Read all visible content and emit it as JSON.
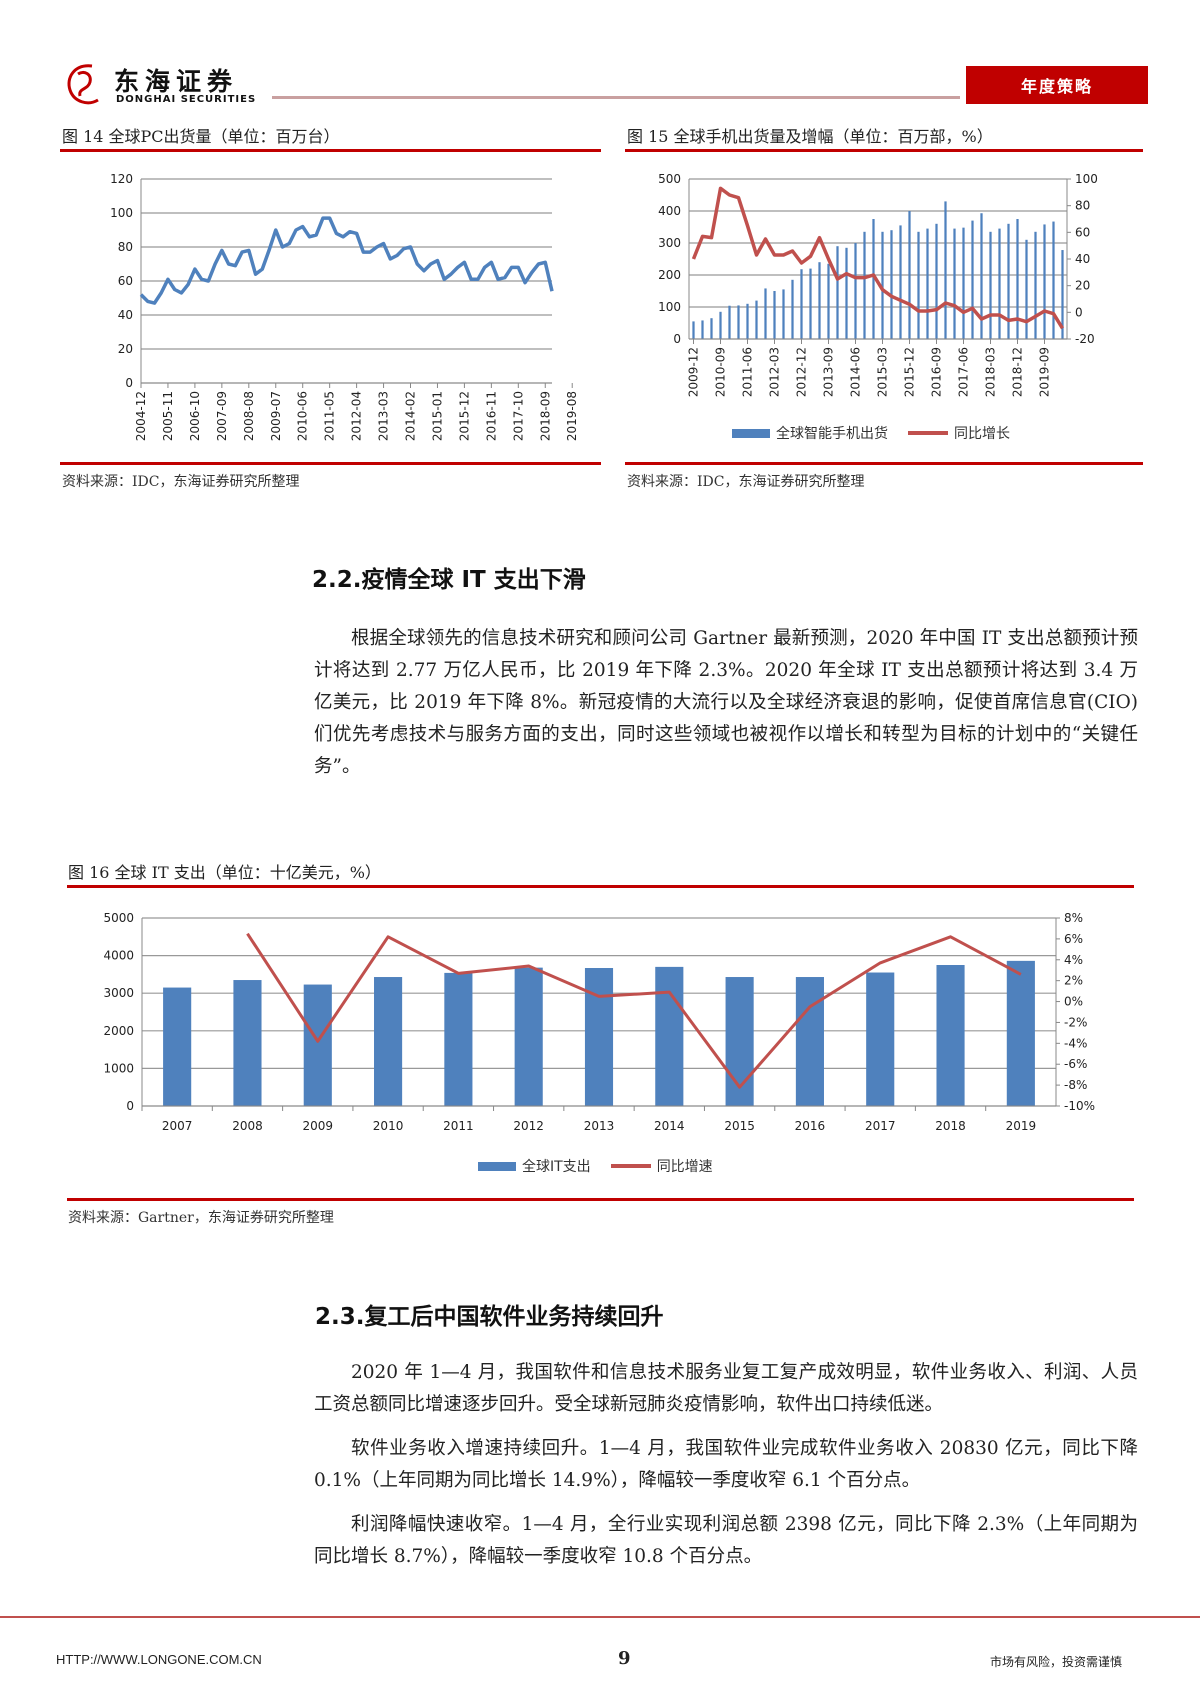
{
  "header": {
    "logo_cn": "东海证券",
    "logo_en": "DONGHAI SECURITIES",
    "tag": "年度策略"
  },
  "fig14": {
    "title": "图 14  全球PC出货量（单位：百万台）",
    "source": "资料来源：IDC，东海证券研究所整理"
  },
  "fig15": {
    "title": "图 15  全球手机出货量及增幅（单位：百万部，%）",
    "source": "资料来源：IDC，东海证券研究所整理",
    "legend_bar": "全球智能手机出货",
    "legend_line": "同比增长"
  },
  "section22": {
    "heading": "2.2.疫情全球 IT 支出下滑",
    "paragraph": "根据全球领先的信息技术研究和顾问公司 Gartner 最新预测，2020 年中国 IT 支出总额预计预计将达到 2.77 万亿人民币，比 2019 年下降 2.3%。2020 年全球 IT 支出总额预计将达到 3.4 万亿美元，比 2019 年下降 8%。新冠疫情的大流行以及全球经济衰退的影响，促使首席信息官(CIO)们优先考虑技术与服务方面的支出，同时这些领域也被视作以增长和转型为目标的计划中的“关键任务”。"
  },
  "fig16": {
    "title": "图 16  全球 IT 支出（单位：十亿美元，%）",
    "source": "资料来源：Gartner，东海证券研究所整理",
    "legend_bar": "全球IT支出",
    "legend_line": "同比增速"
  },
  "section23": {
    "heading": "2.3.复工后中国软件业务持续回升",
    "paragraphs": [
      "2020 年 1—4 月，我国软件和信息技术服务业复工复产成效明显，软件业务收入、利润、人员工资总额同比增速逐步回升。受全球新冠肺炎疫情影响，软件出口持续低迷。",
      "软件业务收入增速持续回升。1—4 月，我国软件业完成软件业务收入 20830 亿元，同比下降 0.1%（上年同期为同比增长 14.9%），降幅较一季度收窄 6.1 个百分点。",
      "利润降幅快速收窄。1—4 月，全行业实现利润总额 2398 亿元，同比下降 2.3%（上年同期为同比增长 8.7%），降幅较一季度收窄 10.8 个百分点。"
    ]
  },
  "footer": {
    "url": "HTTP://WWW.LONGONE.COM.CN",
    "page": "9",
    "disclaimer": "市场有风险，投资需谨慎"
  },
  "chart_data": [
    {
      "id": "fig14",
      "type": "line",
      "title": "全球PC出货量（单位：百万台）",
      "ylim": [
        0,
        120
      ],
      "yticks": [
        0,
        20,
        40,
        60,
        80,
        100,
        120
      ],
      "tick_labels": [
        "2004-12",
        "2005-11",
        "2006-10",
        "2007-09",
        "2008-08",
        "2009-07",
        "2010-06",
        "2011-05",
        "2012-04",
        "2013-03",
        "2014-02",
        "2015-01",
        "2015-12",
        "2016-11",
        "2017-10",
        "2018-09",
        "2019-08"
      ],
      "series": [
        {
          "name": "全球PC出货量",
          "color": "#4f81bd",
          "values": [
            52,
            48,
            47,
            53,
            61,
            55,
            53,
            58,
            67,
            61,
            60,
            70,
            78,
            70,
            69,
            77,
            78,
            64,
            67,
            78,
            90,
            80,
            82,
            90,
            92,
            86,
            87,
            97,
            97,
            88,
            86,
            89,
            88,
            77,
            77,
            80,
            82,
            73,
            75,
            79,
            80,
            70,
            66,
            70,
            72,
            61,
            64,
            68,
            71,
            61,
            61,
            68,
            71,
            61,
            62,
            68,
            68,
            59,
            65,
            70,
            71,
            54
          ]
        }
      ]
    },
    {
      "id": "fig15",
      "type": "bar+line",
      "title": "全球手机出货量及增幅（单位：百万部，%）",
      "ylim": [
        0,
        500
      ],
      "yticks": [
        0,
        100,
        200,
        300,
        400,
        500
      ],
      "y2lim": [
        -20,
        100
      ],
      "y2ticks": [
        -20,
        0,
        20,
        40,
        60,
        80,
        100
      ],
      "tick_labels": [
        "2009-12",
        "2010-09",
        "2011-06",
        "2012-03",
        "2012-12",
        "2013-09",
        "2014-06",
        "2015-03",
        "2015-12",
        "2016-09",
        "2017-06",
        "2018-03",
        "2018-12",
        "2019-09"
      ],
      "series": [
        {
          "name": "全球智能手机出货",
          "type": "bar",
          "color": "#4f81bd",
          "values": [
            55,
            58,
            65,
            85,
            104,
            105,
            110,
            120,
            158,
            150,
            155,
            185,
            218,
            220,
            240,
            235,
            290,
            285,
            300,
            335,
            375,
            335,
            340,
            355,
            400,
            335,
            345,
            360,
            430,
            345,
            348,
            370,
            393,
            335,
            345,
            360,
            375,
            310,
            335,
            358,
            367,
            278
          ]
        },
        {
          "name": "同比增长",
          "type": "line",
          "axis": "right",
          "color": "#c0504d",
          "values": [
            40,
            57,
            56,
            93,
            88,
            86,
            65,
            43,
            55,
            43,
            43,
            46,
            37,
            42,
            56,
            40,
            25,
            29,
            26,
            26,
            28,
            17,
            12,
            9,
            6,
            1,
            1,
            2,
            7,
            5,
            0,
            3,
            -5,
            -2,
            -2,
            -6,
            -5,
            -7,
            -3,
            1,
            -1,
            -12
          ]
        }
      ]
    },
    {
      "id": "fig16",
      "type": "bar+line",
      "title": "全球 IT 支出（单位：十亿美元，%）",
      "ylim": [
        0,
        5000
      ],
      "yticks": [
        0,
        1000,
        2000,
        3000,
        4000,
        5000
      ],
      "y2lim": [
        -10,
        8
      ],
      "y2ticks": [
        "-10%",
        "-8%",
        "-6%",
        "-4%",
        "-2%",
        "0%",
        "2%",
        "4%",
        "6%",
        "8%"
      ],
      "categories": [
        "2007",
        "2008",
        "2009",
        "2010",
        "2011",
        "2012",
        "2013",
        "2014",
        "2015",
        "2016",
        "2017",
        "2018",
        "2019"
      ],
      "series": [
        {
          "name": "全球IT支出",
          "type": "bar",
          "color": "#4f81bd",
          "values": [
            3150,
            3350,
            3230,
            3430,
            3540,
            3680,
            3670,
            3700,
            3430,
            3430,
            3550,
            3750,
            3860
          ]
        },
        {
          "name": "同比增速",
          "type": "line",
          "axis": "right",
          "color": "#c0504d",
          "values": [
            null,
            6.5,
            -3.8,
            6.2,
            2.7,
            3.4,
            0.5,
            0.9,
            -8.2,
            -0.5,
            3.7,
            6.2,
            2.6
          ]
        }
      ]
    }
  ]
}
